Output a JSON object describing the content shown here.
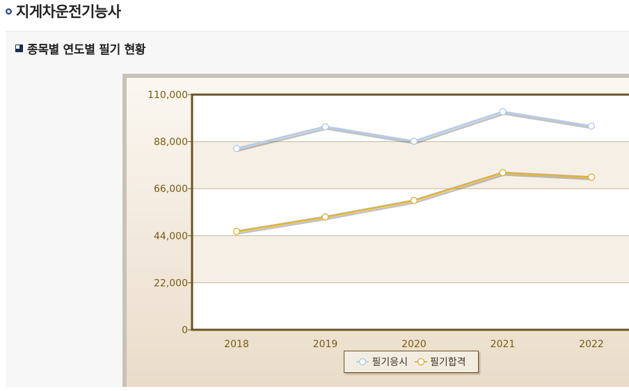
{
  "page": {
    "title": "지게차운전기능사",
    "section_title": "종목별 연도별 필기 현황"
  },
  "colors": {
    "applicants_line": "#b6cce8",
    "passers_line": "#dcb447",
    "axis": "#6b5320",
    "tick_text": "#7a5a10"
  },
  "chart_data": {
    "type": "line",
    "categories": [
      "2018",
      "2019",
      "2020",
      "2021",
      "2022"
    ],
    "series": [
      {
        "name": "필기응시",
        "values": [
          84800,
          95000,
          88200,
          102000,
          95300
        ]
      },
      {
        "name": "필기합격",
        "values": [
          46000,
          52800,
          60500,
          73500,
          71400
        ]
      }
    ],
    "y_ticks": [
      "0",
      "22,000",
      "44,000",
      "66,000",
      "88,000",
      "110,000"
    ],
    "ylim": [
      0,
      110000
    ],
    "grid": true,
    "legend_position": "bottom-center",
    "title": "",
    "xlabel": "",
    "ylabel": ""
  }
}
